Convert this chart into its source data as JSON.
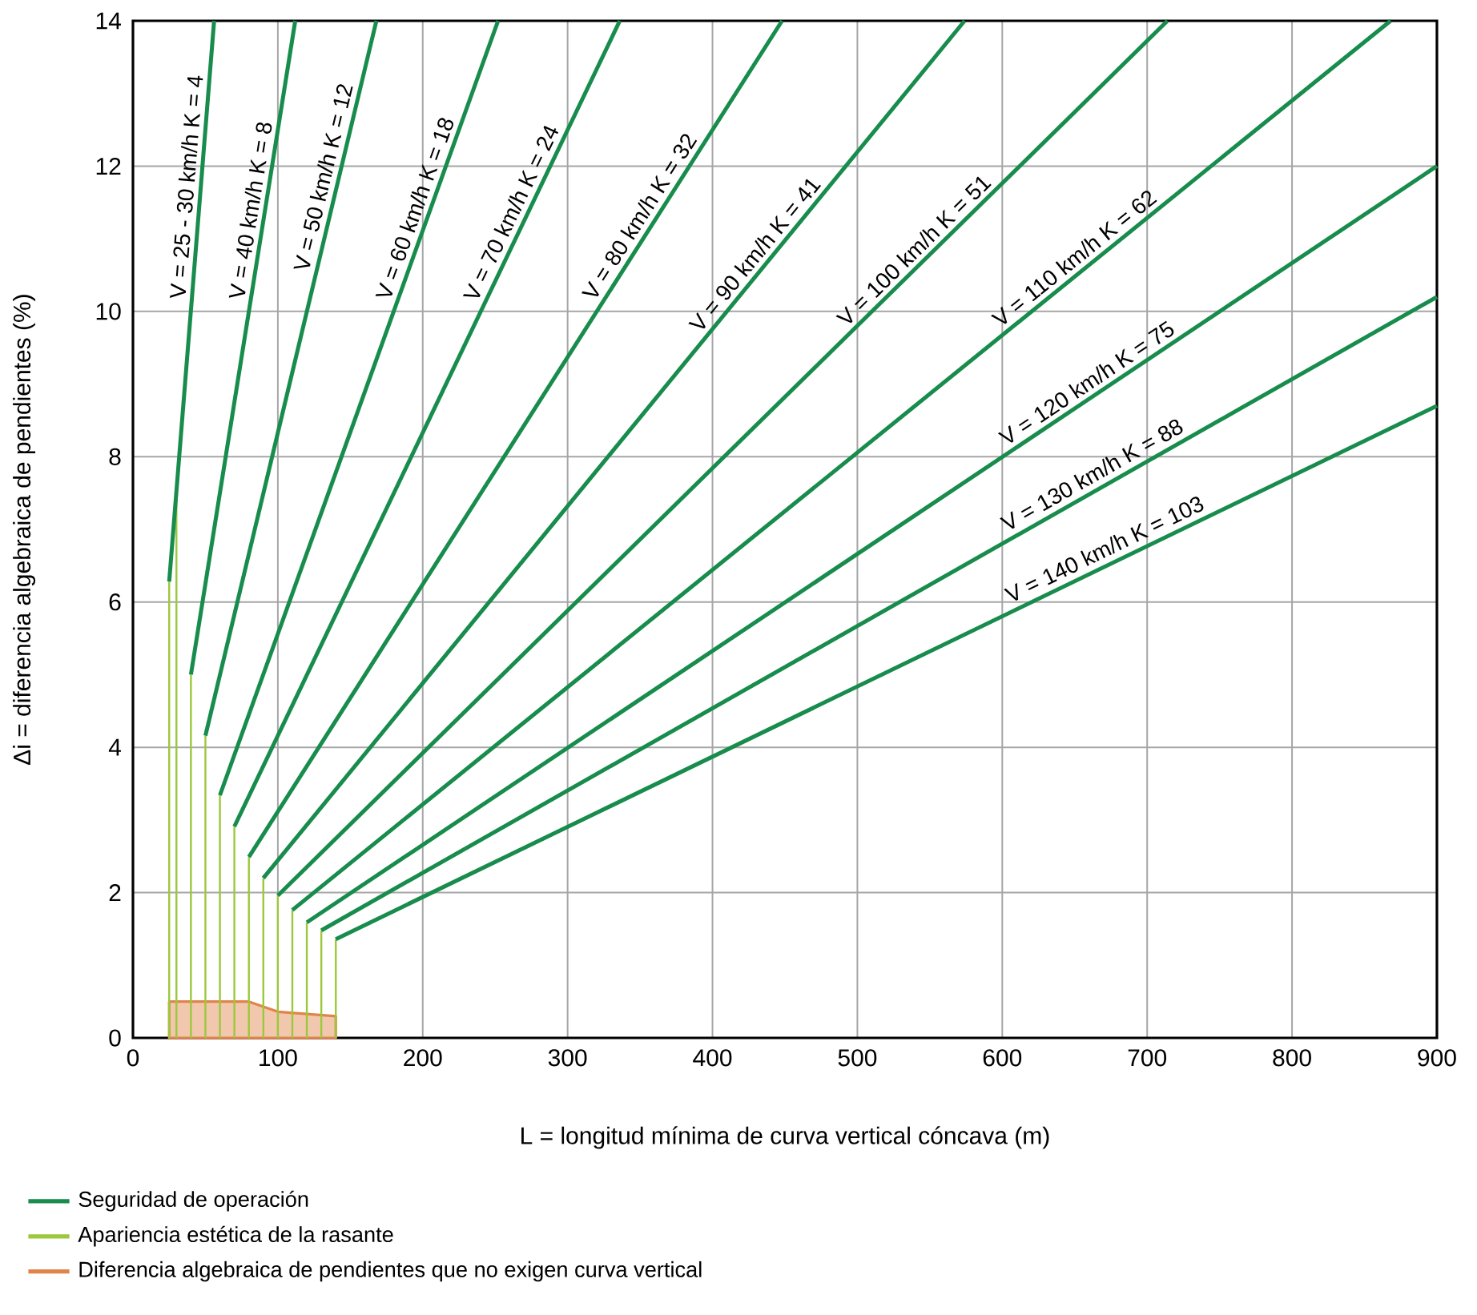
{
  "chart_data": {
    "type": "line",
    "xlabel": "L = longitud mínima de curva vertical cóncava (m)",
    "ylabel": "Δi = diferencia algebraica de pendientes (%)",
    "xlim": [
      0,
      900
    ],
    "ylim": [
      0,
      14
    ],
    "xticks": [
      0,
      100,
      200,
      300,
      400,
      500,
      600,
      700,
      800,
      900
    ],
    "yticks": [
      0,
      2,
      4,
      6,
      8,
      10,
      12,
      14
    ],
    "grid": true,
    "legend": "bottom",
    "series": [
      {
        "name": "Seguridad de operación",
        "color": "#178c4c",
        "x": [
          25,
          56
        ],
        "values": [
          6.28,
          14
        ]
      },
      {
        "color": "#178c4c",
        "x": [
          40,
          112
        ],
        "values": [
          5.0,
          14
        ]
      },
      {
        "color": "#178c4c",
        "x": [
          50,
          168
        ],
        "values": [
          4.16,
          14
        ]
      },
      {
        "color": "#178c4c",
        "x": [
          60,
          252
        ],
        "values": [
          3.34,
          14
        ]
      },
      {
        "color": "#178c4c",
        "x": [
          70,
          336
        ],
        "values": [
          2.91,
          14
        ]
      },
      {
        "color": "#178c4c",
        "x": [
          80,
          448
        ],
        "values": [
          2.49,
          14
        ]
      },
      {
        "color": "#178c4c",
        "x": [
          90,
          574
        ],
        "values": [
          2.2,
          14
        ]
      },
      {
        "color": "#178c4c",
        "x": [
          100,
          714
        ],
        "values": [
          1.96,
          14
        ]
      },
      {
        "color": "#178c4c",
        "x": [
          110,
          868
        ],
        "values": [
          1.76,
          14
        ]
      },
      {
        "color": "#178c4c",
        "x": [
          120,
          900
        ],
        "values": [
          1.59,
          12.0
        ]
      },
      {
        "color": "#178c4c",
        "x": [
          130,
          900
        ],
        "values": [
          1.48,
          10.2
        ]
      },
      {
        "color": "#178c4c",
        "x": [
          140,
          900
        ],
        "values": [
          1.36,
          8.7
        ]
      },
      {
        "type": "bar",
        "name": "Apariencia estética de la rasante",
        "color": "#9cc83c",
        "x": [
          25,
          30,
          40,
          50,
          60,
          70,
          80,
          90,
          100,
          110,
          120,
          130,
          140
        ],
        "values": [
          6.28,
          7.5,
          5.0,
          4.16,
          3.34,
          2.91,
          2.49,
          2.2,
          1.96,
          1.76,
          1.59,
          1.48,
          1.36
        ]
      },
      {
        "type": "area",
        "name": "Diferencia algebraica de pendientes que no exigen curva vertical",
        "color": "#e0844a",
        "x": [
          25,
          80,
          100,
          120,
          140
        ],
        "values": [
          0.5,
          0.5,
          0.36,
          0.33,
          0.3
        ]
      }
    ],
    "annotations": [
      {
        "text": "V = 25 - 30 km/h  K = 4",
        "x": 46.8,
        "y": 11.7
      },
      {
        "text": "V = 40 km/h  K = 8",
        "x": 91,
        "y": 11.36
      },
      {
        "text": "V = 50 km/h  K = 12",
        "x": 141,
        "y": 11.8
      },
      {
        "text": "V = 60 km/h  K = 18",
        "x": 204,
        "y": 11.35
      },
      {
        "text": "V = 70 km/h  K = 24",
        "x": 270,
        "y": 11.27
      },
      {
        "text": "V = 80 km/h  K = 32",
        "x": 358,
        "y": 11.2
      },
      {
        "text": "V = 90 km/h  K = 41",
        "x": 437,
        "y": 10.66
      },
      {
        "text": "V = 100 km/h  K = 51",
        "x": 546,
        "y": 10.7
      },
      {
        "text": "V = 110 km/h  K = 62",
        "x": 656,
        "y": 10.58
      },
      {
        "text": "V = 120 km/h  K = 75",
        "x": 664,
        "y": 8.85
      },
      {
        "text": "V = 130 km/h  K = 88",
        "x": 667,
        "y": 7.58
      },
      {
        "text": "V = 140 km/h  K = 103",
        "x": 675,
        "y": 6.55
      }
    ]
  }
}
